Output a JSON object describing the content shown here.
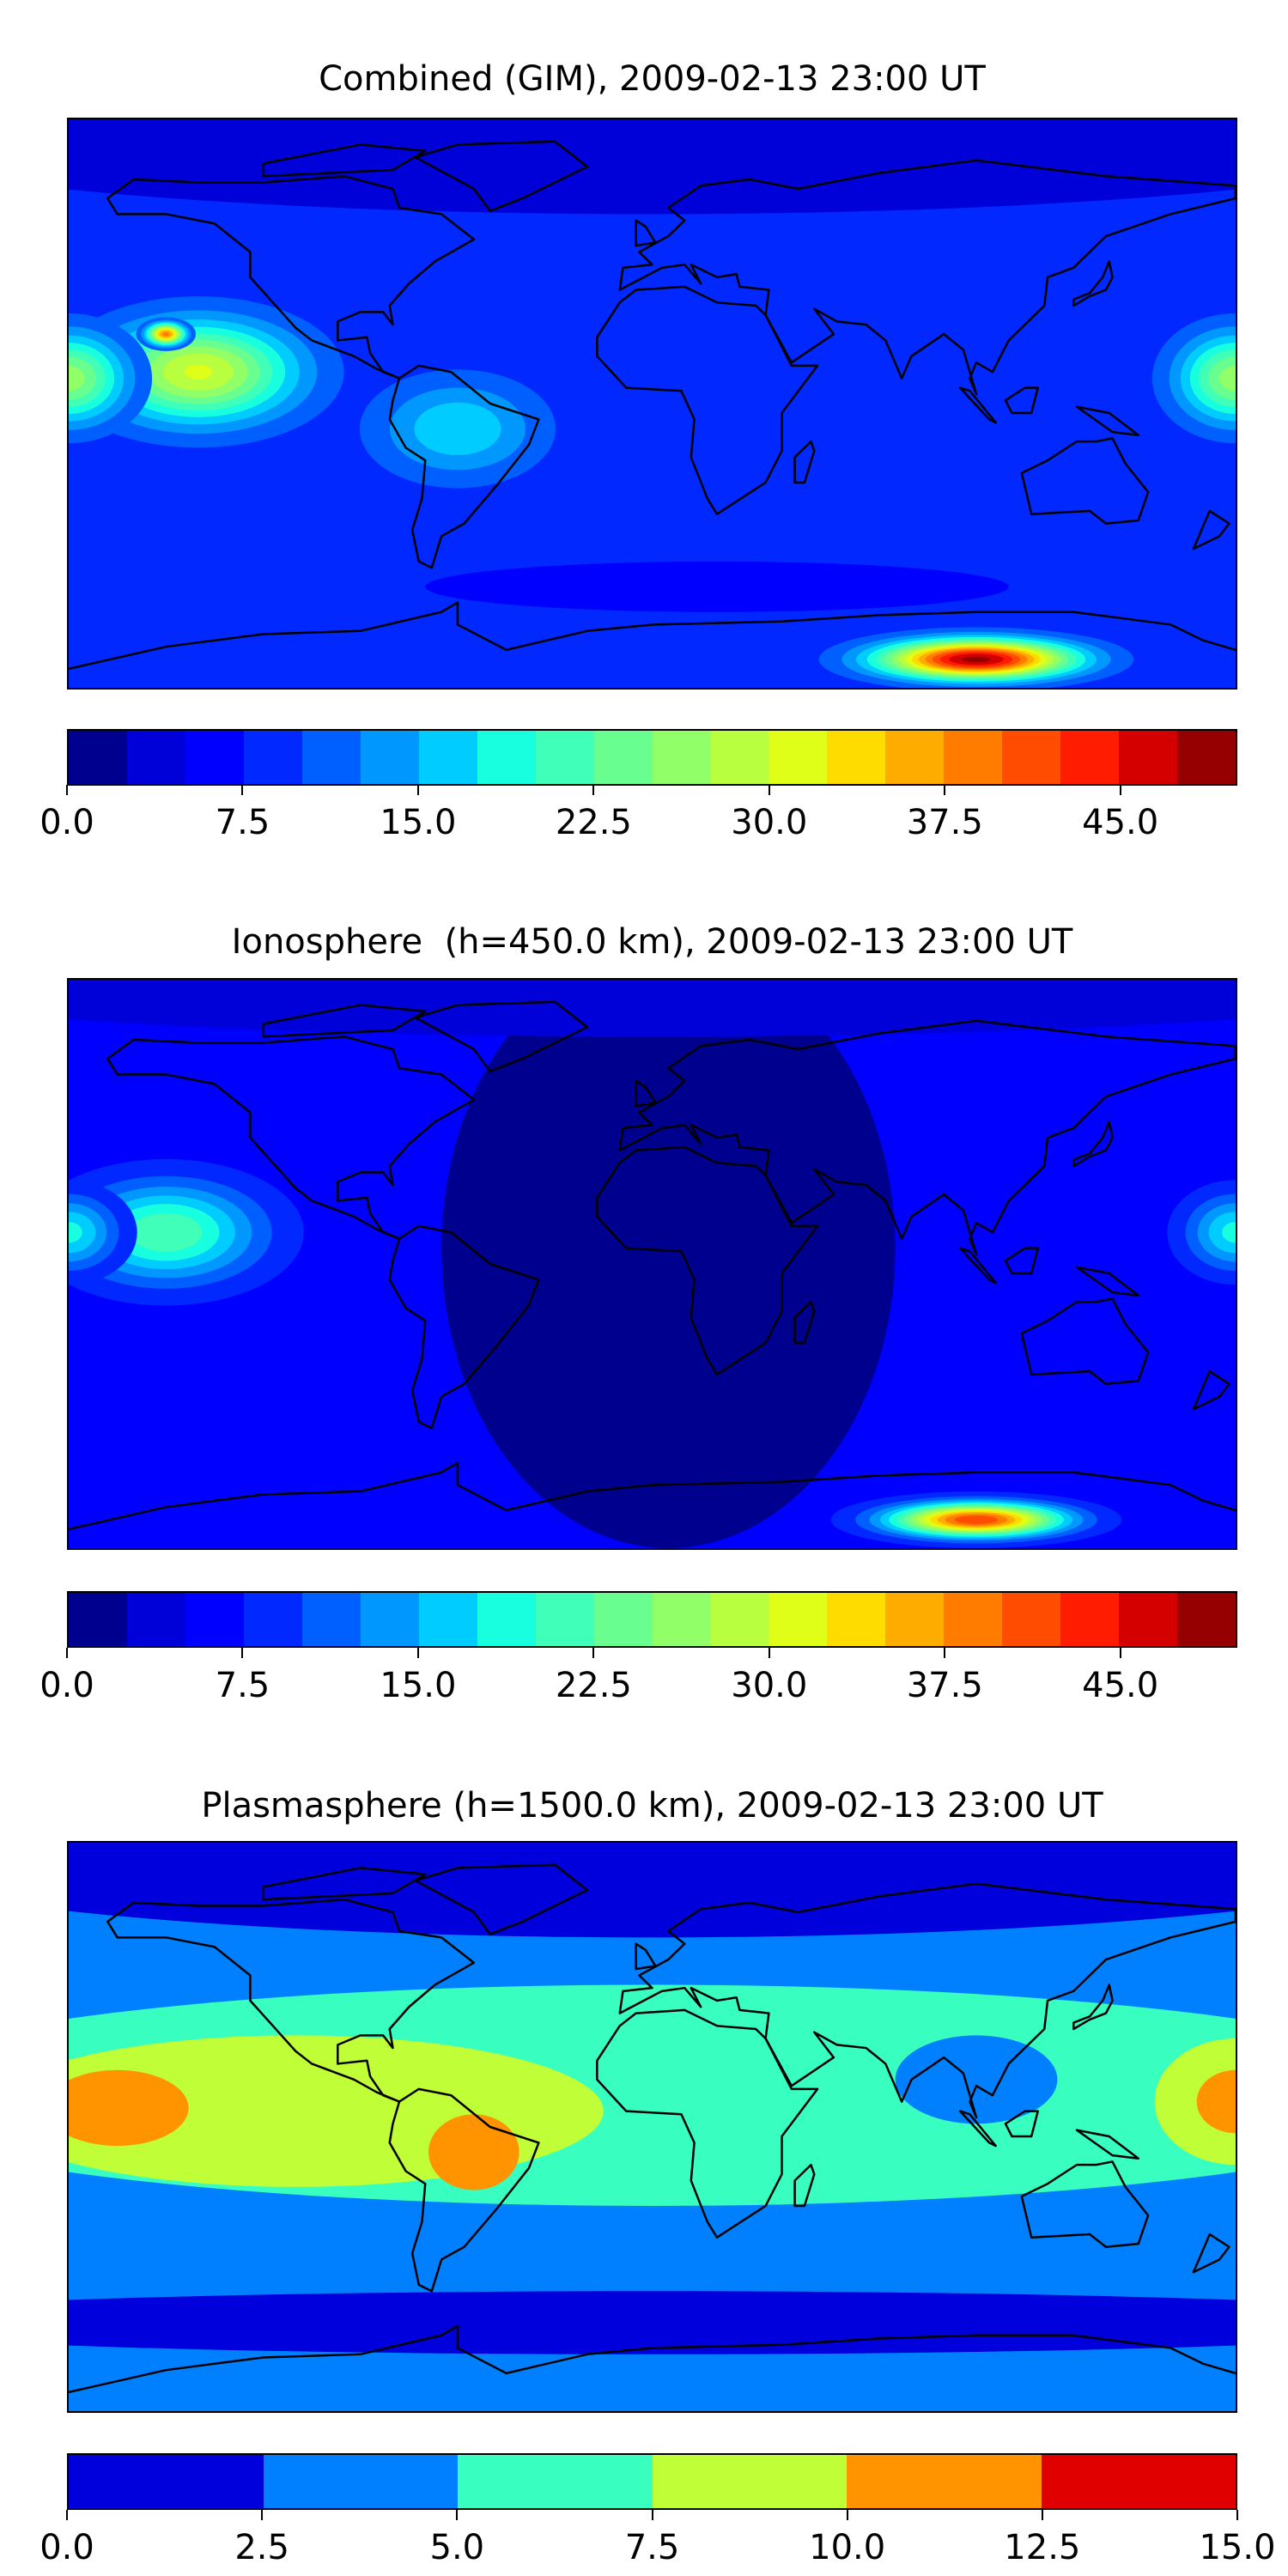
{
  "colors_20": [
    "#00008f",
    "#0000d8",
    "#0000ff",
    "#0028ff",
    "#0060ff",
    "#0098ff",
    "#00ccff",
    "#18ffdf",
    "#40ffb8",
    "#68ff90",
    "#90ff68",
    "#b8ff40",
    "#e0ff18",
    "#ffdc00",
    "#ffac00",
    "#ff7c00",
    "#ff4c00",
    "#ff1c00",
    "#d40000",
    "#960000"
  ],
  "colors_6": [
    "#0000dc",
    "#0080ff",
    "#38ffc0",
    "#c0ff38",
    "#ff9400",
    "#e00000"
  ],
  "chart_data": [
    {
      "type": "heatmap",
      "title": "Combined (GIM), 2009-02-13 23:00 UT",
      "projection": "PlateCarree global map",
      "levels": [
        0,
        2.5,
        5,
        7.5,
        10,
        12.5,
        15,
        17.5,
        20,
        22.5,
        25,
        27.5,
        30,
        32.5,
        35,
        37.5,
        40,
        42.5,
        45,
        47.5,
        50
      ],
      "colorbar_ticks": [
        "0.0",
        "7.5",
        "15.0",
        "22.5",
        "30.0",
        "37.5",
        "45.0"
      ],
      "base_value": 8,
      "features": [
        {
          "type": "fill",
          "lon": 0,
          "lat": 88,
          "rx": 260,
          "ry": 28,
          "value": 4
        },
        {
          "type": "fill",
          "lon": 20,
          "lat": -58,
          "rx": 90,
          "ry": 8,
          "value": 5
        },
        {
          "type": "peak",
          "lon": -60,
          "lat": -8,
          "rx": 45,
          "ry": 28,
          "value": 17
        },
        {
          "type": "peak",
          "lon": -140,
          "lat": 10,
          "rx": 60,
          "ry": 32,
          "value": 30
        },
        {
          "type": "peak",
          "lon": -150,
          "lat": 22,
          "rx": 12,
          "ry": 7,
          "value": 38
        },
        {
          "type": "peak",
          "lon": 180,
          "lat": 8,
          "rx": 35,
          "ry": 28,
          "value": 26
        },
        {
          "type": "peak",
          "lon": -180,
          "lat": 8,
          "rx": 35,
          "ry": 28,
          "value": 26
        },
        {
          "type": "peak",
          "lon": 100,
          "lat": -81,
          "rx": 62,
          "ry": 13,
          "value": 48
        }
      ]
    },
    {
      "type": "heatmap",
      "title": "Ionosphere  (h=450.0 km), 2009-02-13 23:00 UT",
      "projection": "PlateCarree global map",
      "levels": [
        0,
        2.5,
        5,
        7.5,
        10,
        12.5,
        15,
        17.5,
        20,
        22.5,
        25,
        27.5,
        30,
        32.5,
        35,
        37.5,
        40,
        42.5,
        45,
        47.5,
        50
      ],
      "colorbar_ticks": [
        "0.0",
        "7.5",
        "15.0",
        "22.5",
        "30.0",
        "37.5",
        "45.0"
      ],
      "base_value": 6,
      "features": [
        {
          "type": "fill",
          "lon": 5,
          "lat": 5,
          "rx": 70,
          "ry": 95,
          "value": 1
        },
        {
          "type": "fill",
          "lon": 0,
          "lat": 90,
          "rx": 250,
          "ry": 18,
          "value": 4
        },
        {
          "type": "peak",
          "lon": -150,
          "lat": 10,
          "rx": 55,
          "ry": 30,
          "value": 22
        },
        {
          "type": "peak",
          "lon": 180,
          "lat": 10,
          "rx": 28,
          "ry": 22,
          "value": 18
        },
        {
          "type": "peak",
          "lon": -180,
          "lat": 10,
          "rx": 28,
          "ry": 22,
          "value": 18
        },
        {
          "type": "peak",
          "lon": 100,
          "lat": -81,
          "rx": 55,
          "ry": 11,
          "value": 42
        }
      ]
    },
    {
      "type": "heatmap",
      "title": "Plasmasphere (h=1500.0 km), 2009-02-13 23:00 UT",
      "projection": "PlateCarree global map",
      "levels": [
        0,
        2.5,
        5,
        7.5,
        10,
        12.5,
        15
      ],
      "colorbar_ticks": [
        "0.0",
        "2.5",
        "5.0",
        "7.5",
        "10.0",
        "12.5",
        "15.0"
      ],
      "base_value": 3,
      "features": [
        {
          "type": "fill",
          "lon": 0,
          "lat": 90,
          "rx": 260,
          "ry": 30,
          "value": 1
        },
        {
          "type": "fill",
          "lon": 0,
          "lat": -62,
          "rx": 260,
          "ry": 10,
          "value": 1
        },
        {
          "type": "fill",
          "lon": 0,
          "lat": 10,
          "rx": 250,
          "ry": 35,
          "value": 6
        },
        {
          "type": "fill",
          "lon": 100,
          "lat": 15,
          "rx": 25,
          "ry": 14,
          "value": 3
        },
        {
          "type": "fill",
          "lon": -110,
          "lat": 5,
          "rx": 95,
          "ry": 24,
          "value": 9
        },
        {
          "type": "fill",
          "lon": 180,
          "lat": 8,
          "rx": 25,
          "ry": 20,
          "value": 9
        },
        {
          "type": "fill",
          "lon": -165,
          "lat": 6,
          "rx": 22,
          "ry": 12,
          "value": 11
        },
        {
          "type": "fill",
          "lon": -55,
          "lat": -8,
          "rx": 14,
          "ry": 12,
          "value": 11
        },
        {
          "type": "fill",
          "lon": 180,
          "lat": 8,
          "rx": 12,
          "ry": 10,
          "value": 11
        }
      ]
    }
  ]
}
